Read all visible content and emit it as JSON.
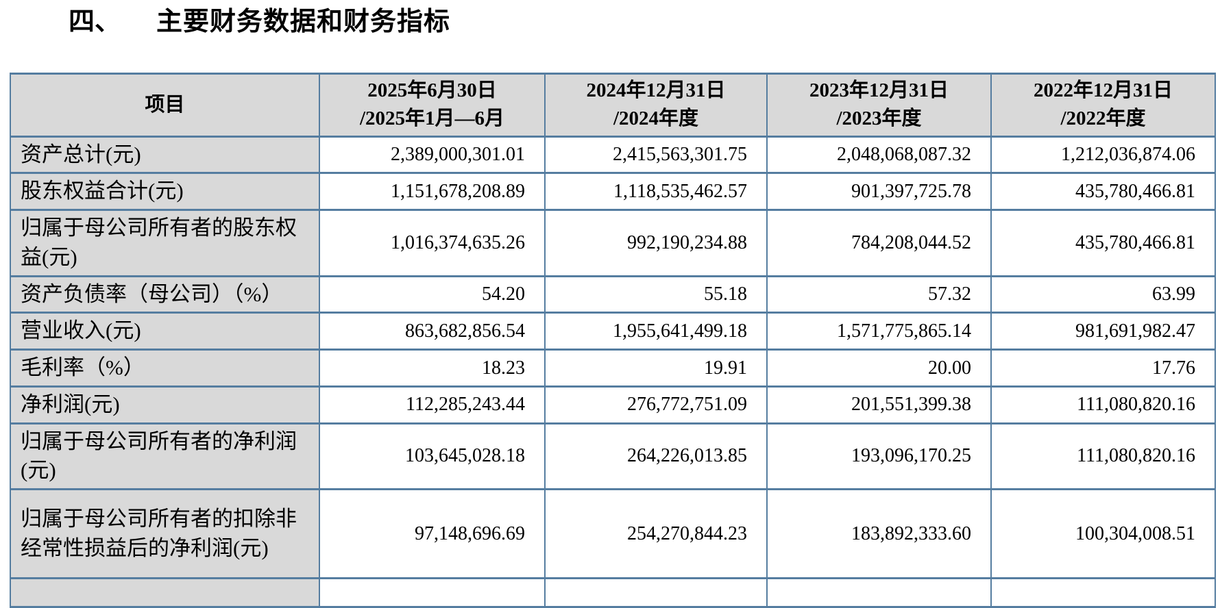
{
  "title": {
    "number": "四、",
    "text": "主要财务数据和财务指标"
  },
  "colors": {
    "border": "#557da0",
    "header_bg": "#d9d9d9",
    "label_bg": "#d9d9d9",
    "cell_bg": "#ffffff",
    "text": "#000000"
  },
  "table": {
    "header": {
      "item": "项目",
      "periods": [
        {
          "line1": "2025年6月30日",
          "line2": "/2025年1月—6月"
        },
        {
          "line1": "2024年12月31日",
          "line2": "/2024年度"
        },
        {
          "line1": "2023年12月31日",
          "line2": "/2023年度"
        },
        {
          "line1": "2022年12月31日",
          "line2": "/2022年度"
        }
      ]
    },
    "rows": [
      {
        "label": "资产总计(元)",
        "values": [
          "2,389,000,301.01",
          "2,415,563,301.75",
          "2,048,068,087.32",
          "1,212,036,874.06"
        ]
      },
      {
        "label": "股东权益合计(元)",
        "values": [
          "1,151,678,208.89",
          "1,118,535,462.57",
          "901,397,725.78",
          "435,780,466.81"
        ]
      },
      {
        "label": "归属于母公司所有者的股东权益(元)",
        "values": [
          "1,016,374,635.26",
          "992,190,234.88",
          "784,208,044.52",
          "435,780,466.81"
        ]
      },
      {
        "label": "资产负债率（母公司）（%）",
        "values": [
          "54.20",
          "55.18",
          "57.32",
          "63.99"
        ]
      },
      {
        "label": "营业收入(元)",
        "values": [
          "863,682,856.54",
          "1,955,641,499.18",
          "1,571,775,865.14",
          "981,691,982.47"
        ]
      },
      {
        "label": "毛利率（%）",
        "values": [
          "18.23",
          "19.91",
          "20.00",
          "17.76"
        ]
      },
      {
        "label": "净利润(元)",
        "values": [
          "112,285,243.44",
          "276,772,751.09",
          "201,551,399.38",
          "111,080,820.16"
        ]
      },
      {
        "label": "归属于母公司所有者的净利润(元)",
        "values": [
          "103,645,028.18",
          "264,226,013.85",
          "193,096,170.25",
          "111,080,820.16"
        ]
      },
      {
        "label": "归属于母公司所有者的扣除非经常性损益后的净利润(元)",
        "values": [
          "97,148,696.69",
          "254,270,844.23",
          "183,892,333.60",
          "100,304,008.51"
        ]
      },
      {
        "label": "",
        "values": [
          "",
          "",
          "",
          ""
        ]
      }
    ]
  }
}
